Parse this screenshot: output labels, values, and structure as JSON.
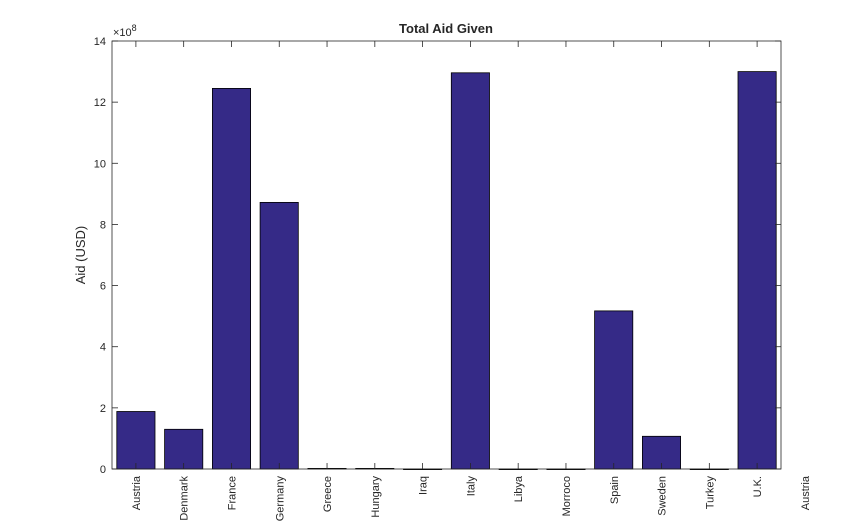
{
  "chart_data": {
    "type": "bar",
    "title": "Total Aid Given",
    "xlabel": "",
    "ylabel": "Aid (USD)",
    "y_exponent_label": "×10",
    "y_exponent_power": "8",
    "ylim": [
      0,
      14
    ],
    "y_ticks": [
      "0",
      "2",
      "4",
      "6",
      "8",
      "10",
      "12",
      "14"
    ],
    "categories": [
      "Austria",
      "Denmark",
      "France",
      "Germany",
      "Greece",
      "Hungary",
      "Iraq",
      "Italy",
      "Libya",
      "Morroco",
      "Spain",
      "Sweden",
      "Turkey",
      "U.K.",
      "Austria"
    ],
    "values": [
      1.88,
      1.3,
      12.45,
      8.72,
      0.02,
      0.02,
      0,
      12.96,
      0,
      0,
      5.17,
      1.07,
      0,
      13.0,
      null
    ],
    "bar_color": "#352a87",
    "grid": false,
    "legend": "none"
  }
}
